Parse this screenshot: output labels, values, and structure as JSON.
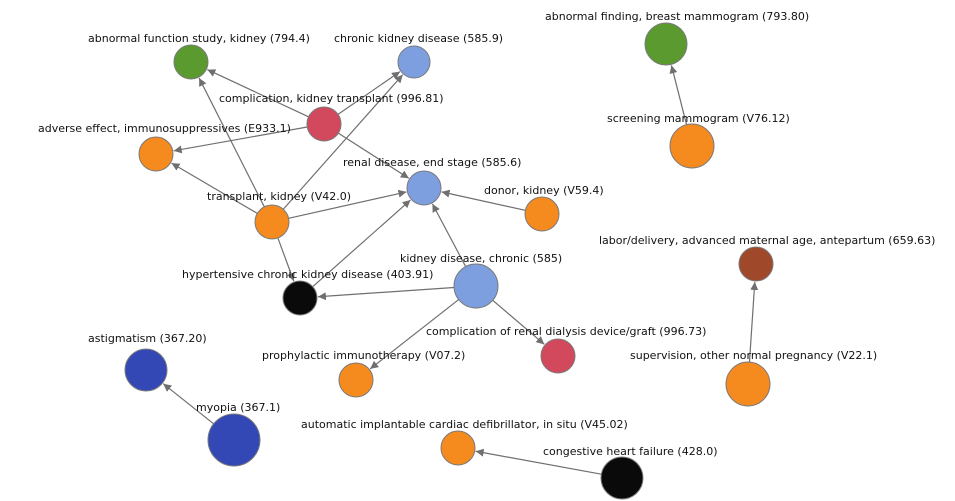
{
  "colors": {
    "green": "#5a9a2f",
    "light_blue": "#7d9fdf",
    "red": "#d2485c",
    "orange": "#f58a1f",
    "black": "#0a0a0a",
    "dark_blue": "#3448b5",
    "brown": "#a0482a",
    "edge": "#6f6f6f"
  },
  "nodes": [
    {
      "id": "n1",
      "label": "abnormal function study, kidney (794.4)",
      "color": "green"
    },
    {
      "id": "n2",
      "label": "chronic kidney disease (585.9)",
      "color": "light_blue"
    },
    {
      "id": "n3",
      "label": "complication, kidney transplant (996.81)",
      "color": "red"
    },
    {
      "id": "n4",
      "label": "adverse effect, immunosuppressives (E933.1)",
      "color": "orange"
    },
    {
      "id": "n5",
      "label": "renal disease, end stage (585.6)",
      "color": "light_blue"
    },
    {
      "id": "n6",
      "label": "donor, kidney (V59.4)",
      "color": "orange"
    },
    {
      "id": "n7",
      "label": "transplant, kidney (V42.0)",
      "color": "orange"
    },
    {
      "id": "n8",
      "label": "kidney disease, chronic (585)",
      "color": "light_blue"
    },
    {
      "id": "n9",
      "label": "hypertensive chronic kidney disease (403.91)",
      "color": "black"
    },
    {
      "id": "n10",
      "label": "complication of renal dialysis device/graft (996.73)",
      "color": "red"
    },
    {
      "id": "n11",
      "label": "prophylactic immunotherapy (V07.2)",
      "color": "orange"
    },
    {
      "id": "n12",
      "label": "astigmatism (367.20)",
      "color": "dark_blue"
    },
    {
      "id": "n13",
      "label": "myopia (367.1)",
      "color": "dark_blue"
    },
    {
      "id": "n14",
      "label": "automatic implantable cardiac defibrillator, in situ (V45.02)",
      "color": "orange"
    },
    {
      "id": "n15",
      "label": "congestive heart failure (428.0)",
      "color": "black"
    },
    {
      "id": "n16",
      "label": "abnormal finding, breast mammogram (793.80)",
      "color": "green"
    },
    {
      "id": "n17",
      "label": "screening mammogram (V76.12)",
      "color": "orange"
    },
    {
      "id": "n18",
      "label": "labor/delivery, advanced maternal age, antepartum (659.63)",
      "color": "brown"
    },
    {
      "id": "n19",
      "label": "supervision, other normal pregnancy (V22.1)",
      "color": "orange"
    }
  ],
  "edges": [
    {
      "from": "n3",
      "to": "n1"
    },
    {
      "from": "n3",
      "to": "n4"
    },
    {
      "from": "n3",
      "to": "n5"
    },
    {
      "from": "n7",
      "to": "n1"
    },
    {
      "from": "n7",
      "to": "n2"
    },
    {
      "from": "n7",
      "to": "n4"
    },
    {
      "from": "n7",
      "to": "n5"
    },
    {
      "from": "n7",
      "to": "n9"
    },
    {
      "from": "n6",
      "to": "n5"
    },
    {
      "from": "n8",
      "to": "n5"
    },
    {
      "from": "n8",
      "to": "n9"
    },
    {
      "from": "n8",
      "to": "n10"
    },
    {
      "from": "n8",
      "to": "n11"
    },
    {
      "from": "n9",
      "to": "n5"
    },
    {
      "from": "n3",
      "to": "n2"
    },
    {
      "from": "n13",
      "to": "n12"
    },
    {
      "from": "n15",
      "to": "n14"
    },
    {
      "from": "n17",
      "to": "n16"
    },
    {
      "from": "n19",
      "to": "n18"
    }
  ]
}
